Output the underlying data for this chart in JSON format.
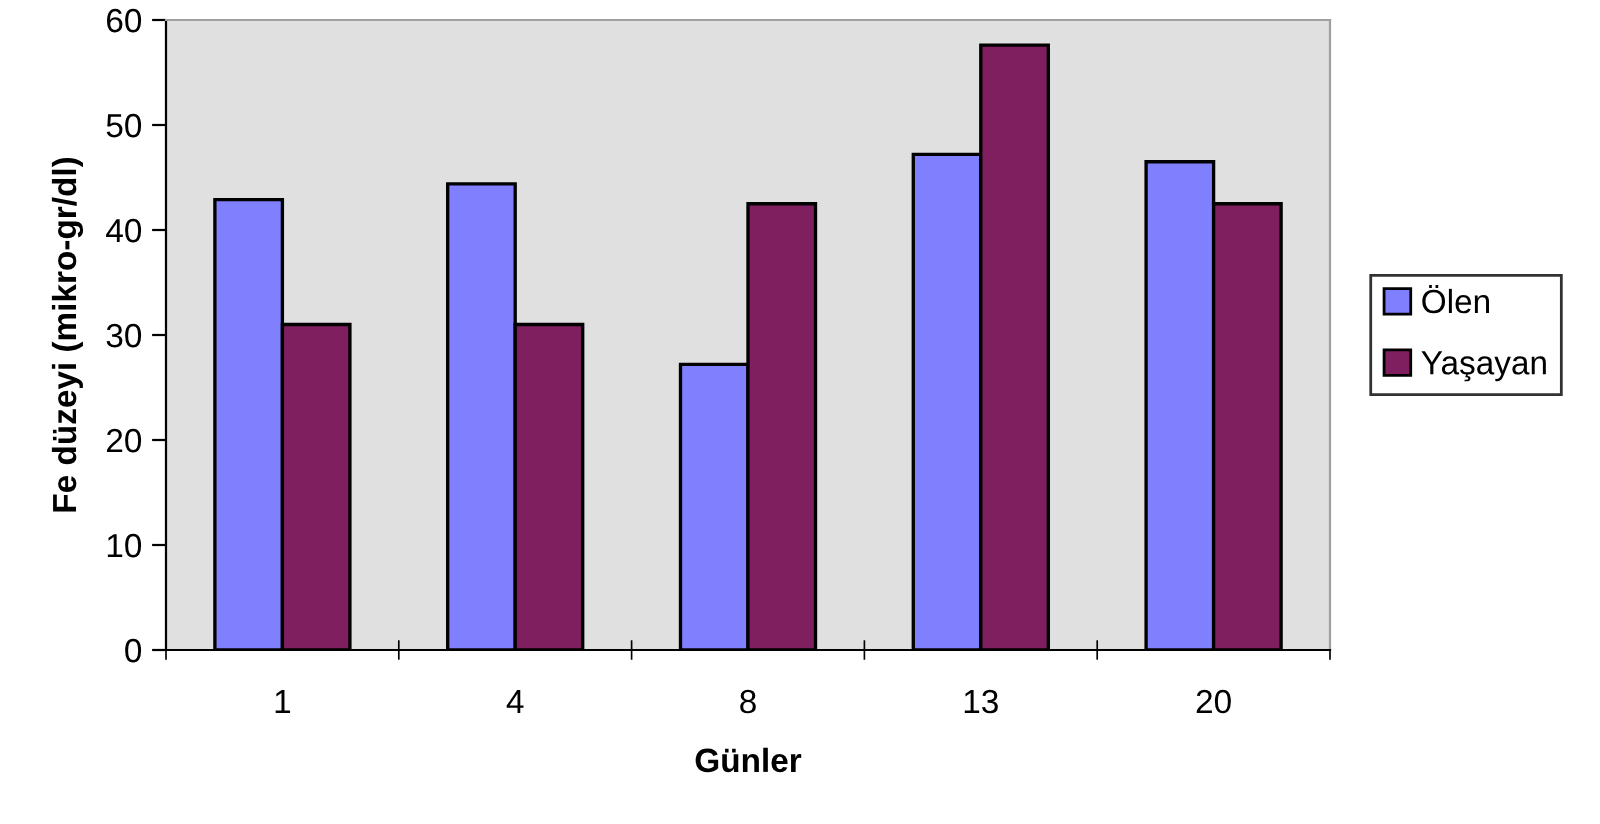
{
  "chart_data": {
    "type": "bar",
    "xlabel": "Günler",
    "ylabel": "Fe düzeyi (mikro-gr/dl)",
    "categories": [
      "1",
      "4",
      "8",
      "13",
      "20"
    ],
    "series": [
      {
        "name": "Ölen",
        "color": "#8080ff",
        "values": [
          42.9,
          44.4,
          27.2,
          47.2,
          46.5
        ]
      },
      {
        "name": "Yaşayan",
        "color": "#7f1f5f",
        "values": [
          31.0,
          31.0,
          42.5,
          57.6,
          42.5
        ]
      }
    ],
    "ylim": [
      0,
      60
    ],
    "yticks": [
      0,
      10,
      20,
      30,
      40,
      50,
      60
    ],
    "grid": false,
    "legend": "right"
  }
}
